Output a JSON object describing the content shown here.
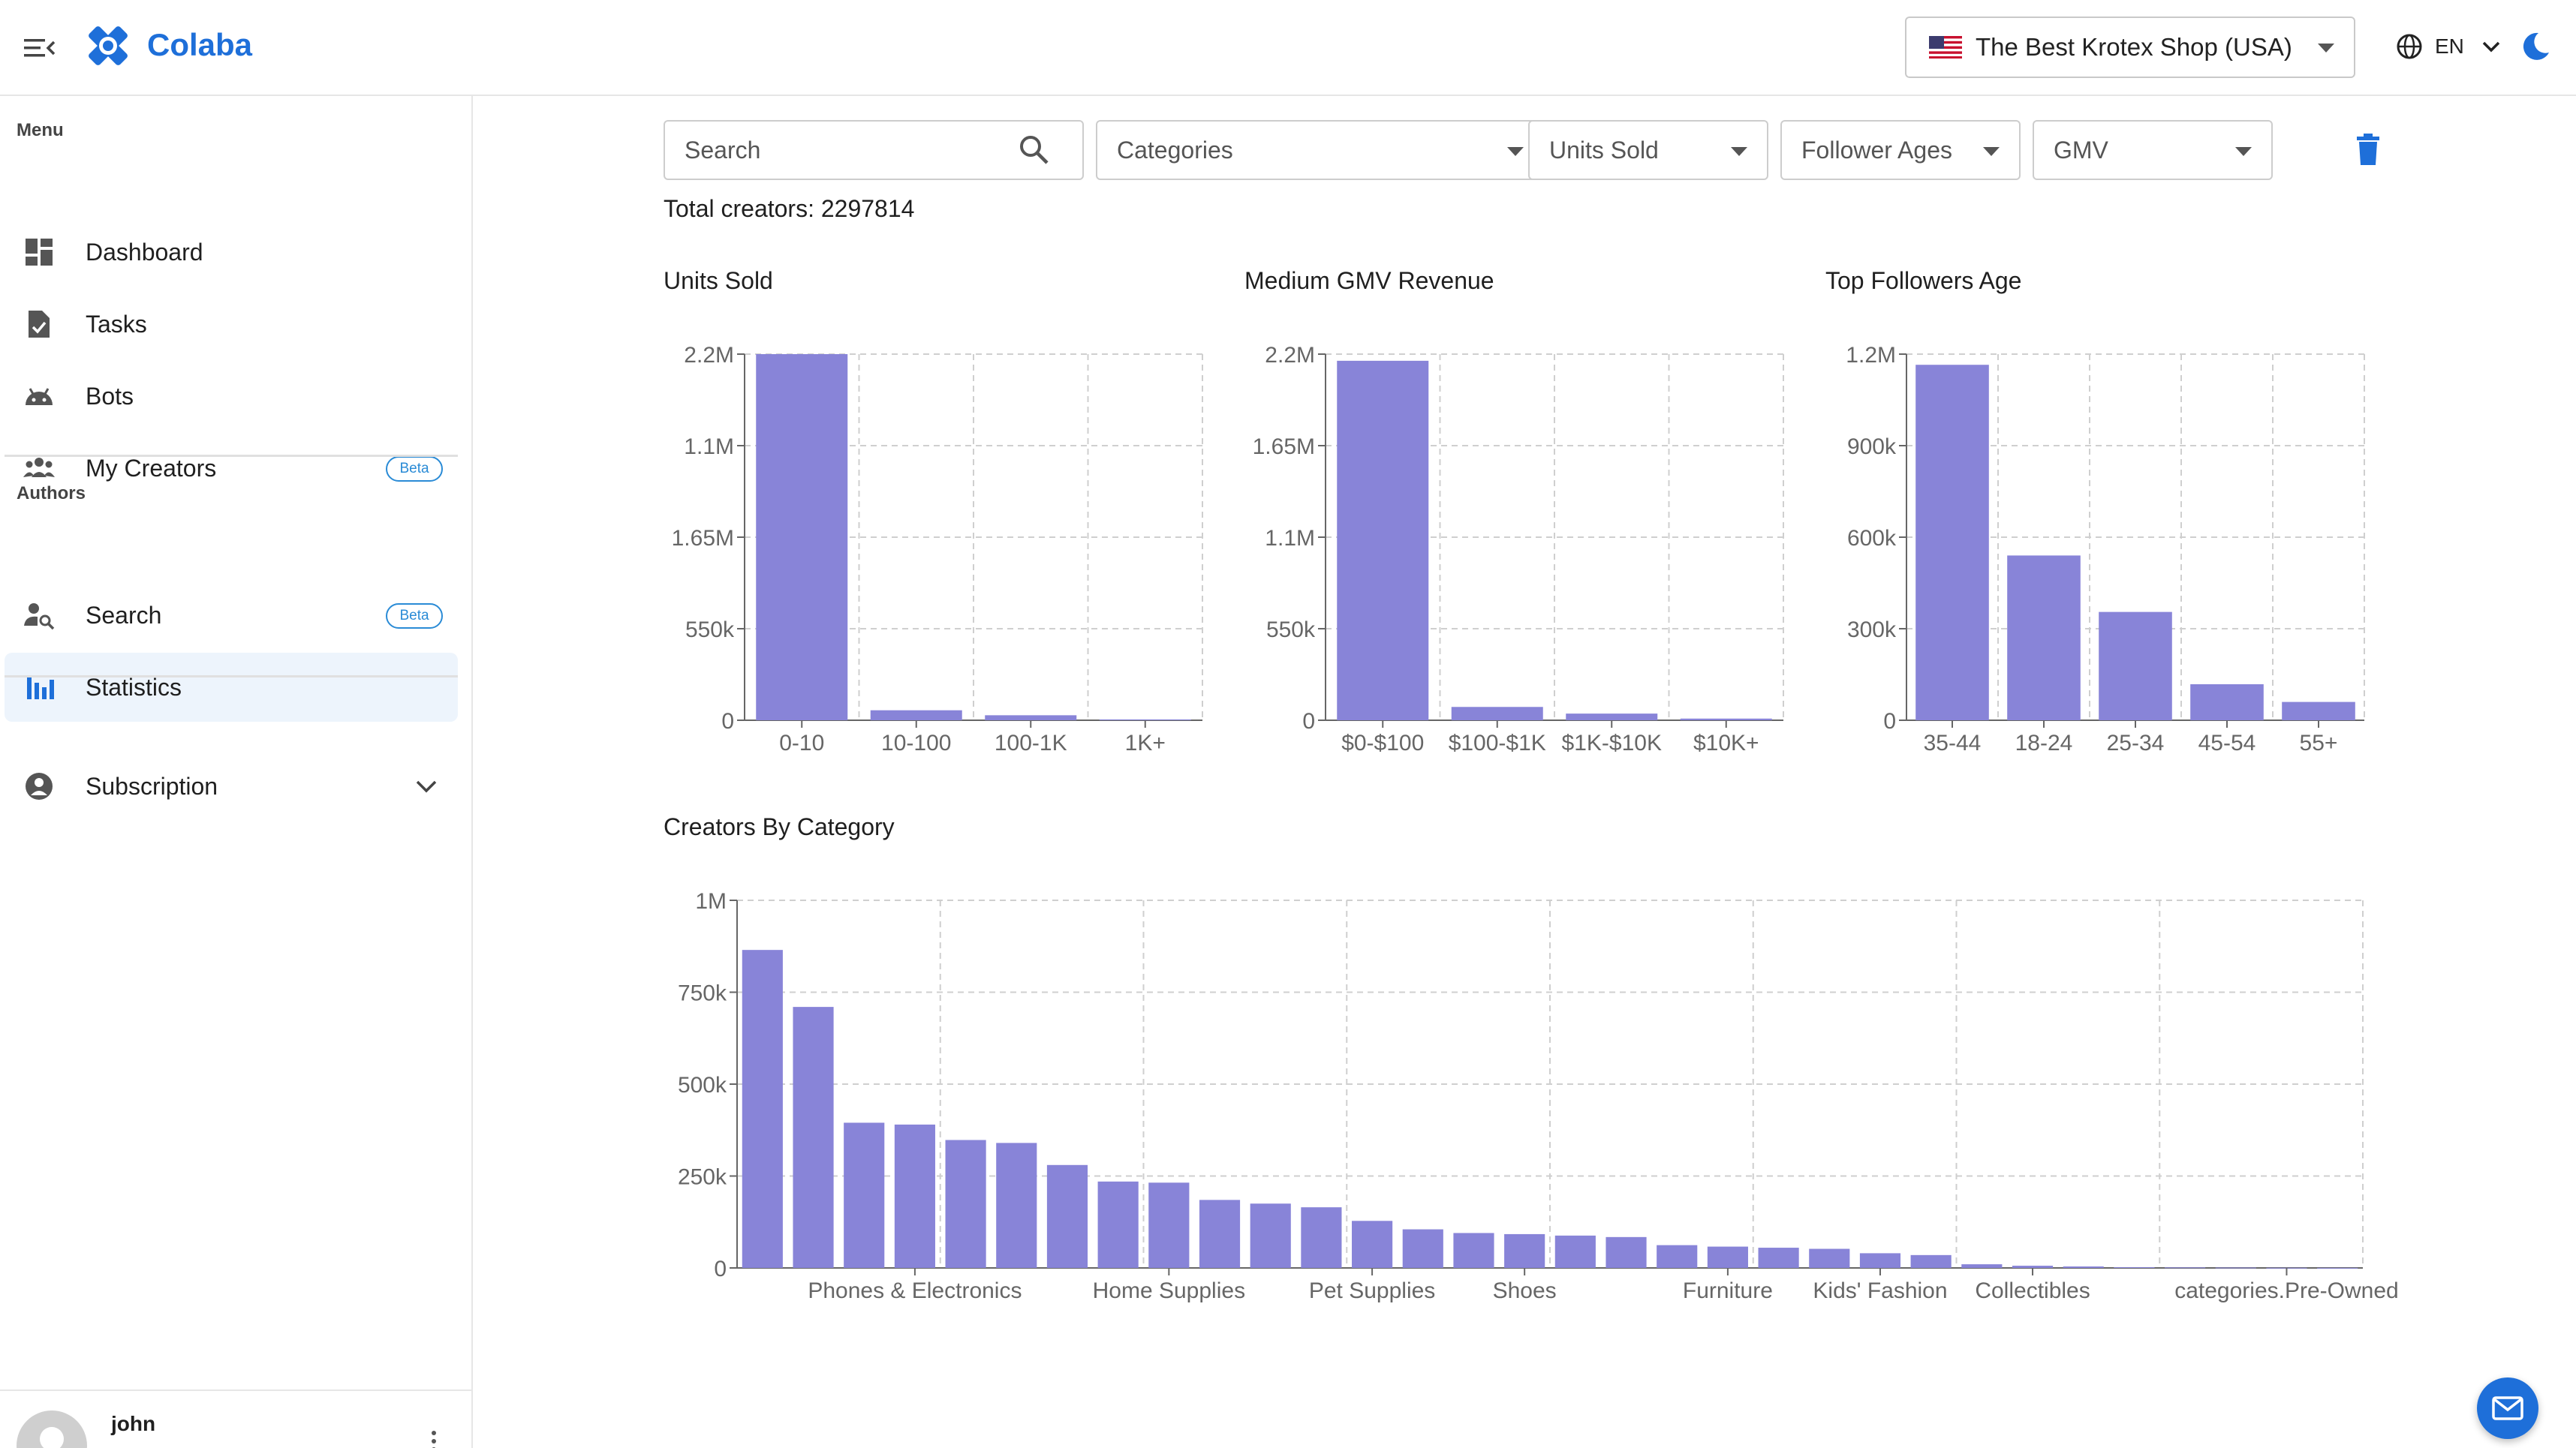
{
  "app": {
    "brand": "Colaba"
  },
  "header": {
    "shop": {
      "flag": "us-flag-icon",
      "name": "The Best Krotex Shop (USA)"
    },
    "language": "EN",
    "accent_color": "#1e6fd9"
  },
  "sidebar": {
    "menu_label": "Menu",
    "menu_items": [
      {
        "label": "Dashboard",
        "icon": "dashboard-icon"
      },
      {
        "label": "Tasks",
        "icon": "task-icon"
      },
      {
        "label": "Bots",
        "icon": "bot-icon"
      },
      {
        "label": "My Creators",
        "icon": "people-icon",
        "badge": "Beta"
      }
    ],
    "authors_label": "Authors",
    "author_items": [
      {
        "label": "Search",
        "icon": "person-search-icon",
        "badge": "Beta"
      },
      {
        "label": "Statistics",
        "icon": "bar-chart-icon",
        "active": true
      }
    ],
    "subscription_label": "Subscription",
    "user": {
      "name": "john"
    }
  },
  "filters": {
    "search_placeholder": "Search",
    "categories": "Categories",
    "units_sold": "Units Sold",
    "follower_ages": "Follower Ages",
    "gmv": "GMV"
  },
  "summary": {
    "total_creators": "Total creators: 2297814"
  },
  "chart_data": [
    {
      "type": "bar",
      "title": "Units Sold",
      "categories": [
        "0-10",
        "10-100",
        "100-1K",
        "1K+"
      ],
      "values": [
        2200000,
        60000,
        30000,
        5000
      ],
      "ticks": [
        "0",
        "550k",
        "1.65M",
        "1.1M",
        "2.2M"
      ],
      "ylim": [
        0,
        2200000
      ],
      "grid": true,
      "color": "#8884d8"
    },
    {
      "type": "bar",
      "title": "Medium GMV Revenue",
      "categories": [
        "$0-$100",
        "$100-$1K",
        "$1K-$10K",
        "$10K+"
      ],
      "values": [
        2160000,
        80000,
        40000,
        10000
      ],
      "ticks": [
        "0",
        "550k",
        "1.1M",
        "1.65M",
        "2.2M"
      ],
      "ylim": [
        0,
        2200000
      ],
      "grid": true,
      "color": "#8884d8"
    },
    {
      "type": "bar",
      "title": "Top Followers Age",
      "categories": [
        "35-44",
        "18-24",
        "25-34",
        "45-54",
        "55+"
      ],
      "values": [
        1165000,
        540000,
        355000,
        118000,
        60000
      ],
      "ticks": [
        "0",
        "300k",
        "600k",
        "900k",
        "1.2M"
      ],
      "ylim": [
        0,
        1200000
      ],
      "grid": true,
      "color": "#8884d8"
    },
    {
      "type": "bar",
      "title": "Creators By Category",
      "shown_tick_labels": [
        "Phones & Electronics",
        "Home Supplies",
        "Pet Supplies",
        "Shoes",
        "Furniture",
        "Kids' Fashion",
        "Collectibles",
        "categories.Pre-Owned"
      ],
      "values": [
        865000,
        710000,
        395000,
        390000,
        348000,
        340000,
        280000,
        235000,
        232000,
        185000,
        175000,
        165000,
        128000,
        105000,
        95000,
        92000,
        88000,
        84000,
        62000,
        58000,
        55000,
        52000,
        40000,
        35000,
        10000,
        6000,
        4000,
        2000,
        1500,
        1000,
        500,
        300
      ],
      "ticks": [
        "0",
        "250k",
        "500k",
        "750k",
        "1M"
      ],
      "ylim": [
        0,
        1000000
      ],
      "grid": true,
      "color": "#8884d8"
    }
  ]
}
